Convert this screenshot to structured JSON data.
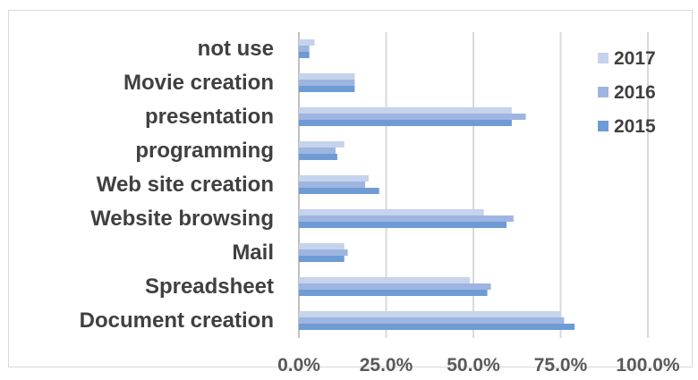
{
  "chart_data": {
    "type": "bar",
    "orientation": "horizontal",
    "title": "",
    "xlabel": "",
    "ylabel": "",
    "categories": [
      "not use",
      "Movie creation",
      "presentation",
      "programming",
      "Web site creation",
      "Website browsing",
      "Mail",
      "Spreadsheet",
      "Document creation"
    ],
    "series": [
      {
        "name": "2017",
        "color": "#c5d3ec",
        "values": [
          0.045,
          0.16,
          0.61,
          0.13,
          0.2,
          0.53,
          0.13,
          0.49,
          0.75
        ]
      },
      {
        "name": "2016",
        "color": "#9db5e0",
        "values": [
          0.03,
          0.16,
          0.65,
          0.105,
          0.19,
          0.615,
          0.14,
          0.55,
          0.76
        ]
      },
      {
        "name": "2015",
        "color": "#6e9bd4",
        "values": [
          0.03,
          0.16,
          0.61,
          0.11,
          0.23,
          0.595,
          0.13,
          0.54,
          0.79
        ]
      }
    ],
    "xlim": [
      0,
      1
    ],
    "xticks": [
      0,
      0.25,
      0.5,
      0.75,
      1
    ],
    "xtick_labels": [
      "0.0%",
      "25.0%",
      "50.0%",
      "75.0%",
      "100.0%"
    ],
    "grid": "vertical",
    "legend": "right"
  }
}
